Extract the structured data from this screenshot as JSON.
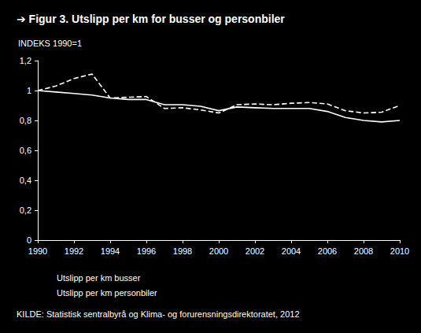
{
  "chart_data": {
    "type": "line",
    "title": "➔ Figur 3. Utslipp per km for busser og personbiler",
    "subtitle": "INDEKS 1990=1",
    "annotations": [
      "KILDE: Statistisk sentralbyrå og Klima- og forurensningsdirektoratet, 2012"
    ],
    "x": [
      1990,
      1991,
      1992,
      1993,
      1994,
      1995,
      1996,
      1997,
      1998,
      1999,
      2000,
      2001,
      2002,
      2003,
      2004,
      2005,
      2006,
      2007,
      2008,
      2009,
      2010
    ],
    "series": [
      {
        "name": "Utslipp per km busser",
        "color": "#ffffff",
        "line_style": "dashed",
        "values": [
          1.0,
          1.03,
          1.08,
          1.11,
          0.95,
          0.955,
          0.96,
          0.88,
          0.885,
          0.87,
          0.85,
          0.905,
          0.91,
          0.905,
          0.915,
          0.92,
          0.91,
          0.865,
          0.85,
          0.855,
          0.9
        ]
      },
      {
        "name": "Utslipp per km personbiler",
        "color": "#ffffff",
        "line_style": "solid",
        "values": [
          1.0,
          0.99,
          0.98,
          0.97,
          0.95,
          0.94,
          0.94,
          0.905,
          0.905,
          0.895,
          0.865,
          0.89,
          0.885,
          0.88,
          0.88,
          0.88,
          0.86,
          0.82,
          0.8,
          0.79,
          0.8
        ]
      }
    ],
    "xlim": [
      1990,
      2010
    ],
    "xticks": [
      1990,
      1992,
      1994,
      1996,
      1998,
      2000,
      2002,
      2004,
      2006,
      2008,
      2010
    ],
    "ylim": [
      0,
      1.2
    ],
    "yticks": [
      0,
      {
        "value": 0.2,
        "label": "0,2"
      },
      {
        "value": 0.4,
        "label": "0,4"
      },
      {
        "value": 0.6,
        "label": "0,6"
      },
      {
        "value": 0.8,
        "label": "0,8"
      },
      1,
      {
        "value": 1.2,
        "label": "1,2"
      }
    ],
    "grid": false,
    "legend": "bottom-left"
  }
}
